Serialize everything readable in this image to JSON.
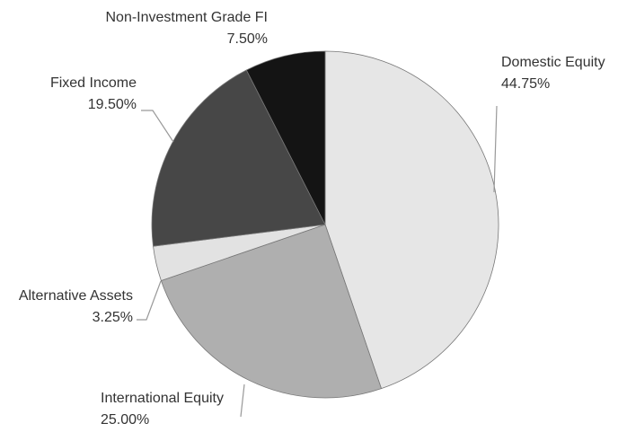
{
  "chart_data": {
    "type": "pie",
    "categories": [
      "Domestic Equity",
      "International Equity",
      "Alternative Assets",
      "Fixed Income",
      "Non-Investment Grade FI"
    ],
    "values": [
      44.75,
      25.0,
      3.25,
      19.5,
      7.5
    ],
    "value_labels": [
      "44.75%",
      "25.00%",
      "3.25%",
      "19.50%",
      "7.50%"
    ],
    "colors": [
      "#e6e6e6",
      "#afafaf",
      "#e2e2e2",
      "#474747",
      "#141414"
    ]
  }
}
